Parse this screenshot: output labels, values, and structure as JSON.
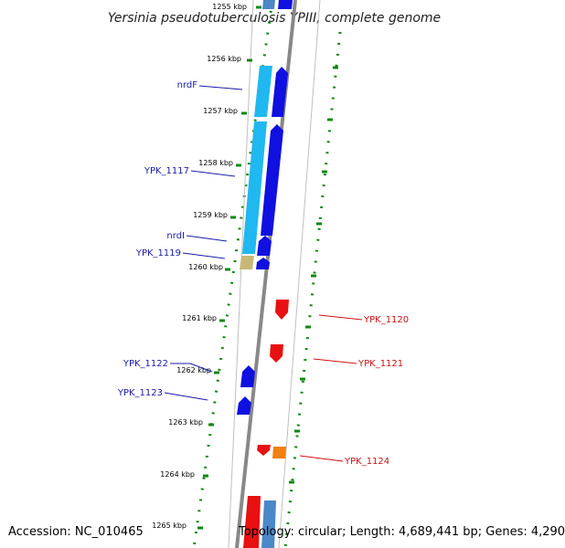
{
  "map": {
    "title": "Yersinia pseudotuberculosis YPIII, complete genome",
    "accession": "Accession: NC_010465",
    "topology": "Topology: circular; Length: 4,689,441 bp; Genes: 4,290"
  },
  "scale_labels": [
    "1255 kbp",
    "1256 kbp",
    "1257 kbp",
    "1258 kbp",
    "1259 kbp",
    "1260 kbp",
    "1261 kbp",
    "1262 kbp",
    "1263 kbp",
    "1264 kbp",
    "1265 kbp"
  ],
  "gene_labels": {
    "left": [
      "nrdF",
      "YPK_1117",
      "nrdI",
      "YPK_1119",
      "YPK_1122",
      "YPK_1123"
    ],
    "right": [
      "YPK_1120",
      "YPK_1121",
      "YPK_1124"
    ]
  },
  "colors": {
    "forward_strand": "#1010e0",
    "reverse_strand": "#e81010",
    "light_blue": "#20b8f0",
    "steel_blue": "#4a88c8",
    "orange": "#f08010",
    "khaki": "#c8b878",
    "dots": "#118811",
    "backbone": "#888888"
  }
}
